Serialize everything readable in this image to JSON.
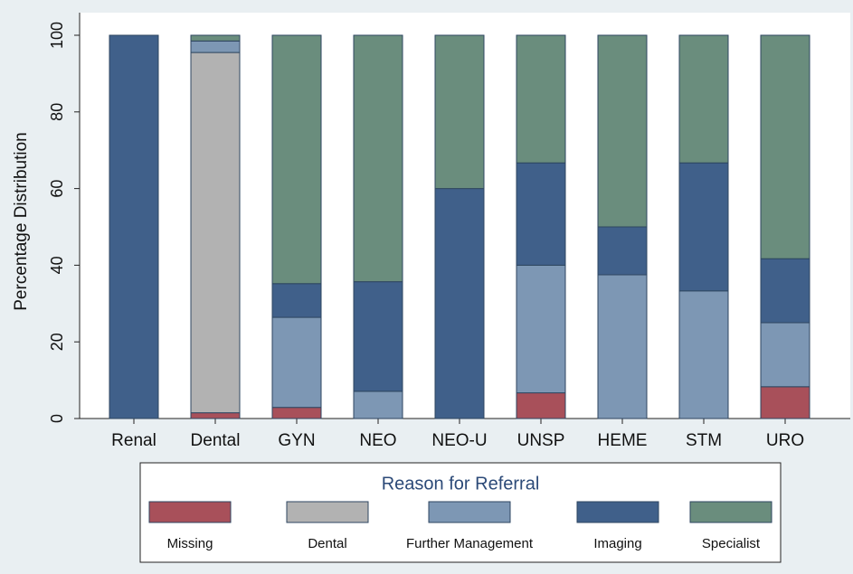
{
  "chart_data": {
    "type": "stacked_bar",
    "categories": [
      "Renal",
      "Dental",
      "GYN",
      "NEO",
      "NEO-U",
      "UNSP",
      "HEME",
      "STM",
      "URO"
    ],
    "y_label": "Percentage Distribution",
    "legend_title": "Reason for Referral",
    "series": [
      {
        "name": "Missing",
        "color": "#a8505a",
        "values": [
          0,
          1.5,
          2.9,
          0,
          0,
          6.7,
          0,
          0,
          8.3
        ]
      },
      {
        "name": "Dental",
        "color": "#b2b2b2",
        "values": [
          0,
          94,
          0,
          0,
          0,
          0,
          0,
          0,
          0
        ]
      },
      {
        "name": "Further Management",
        "color": "#7d97b4",
        "values": [
          0,
          3,
          23.5,
          7.1,
          0,
          33.3,
          37.5,
          33.3,
          16.7
        ]
      },
      {
        "name": "Imaging",
        "color": "#40608a",
        "values": [
          100,
          0,
          8.8,
          28.6,
          60,
          26.7,
          12.5,
          33.4,
          16.7
        ]
      },
      {
        "name": "Specialist",
        "color": "#6a8d7d",
        "values": [
          0,
          1.5,
          64.8,
          64.3,
          40,
          33.3,
          50,
          33.3,
          58.3
        ]
      }
    ],
    "ylim": [
      0,
      100
    ],
    "yticks": [
      0,
      20,
      40,
      60,
      80,
      100
    ],
    "grid": false,
    "legend": "bottom"
  }
}
